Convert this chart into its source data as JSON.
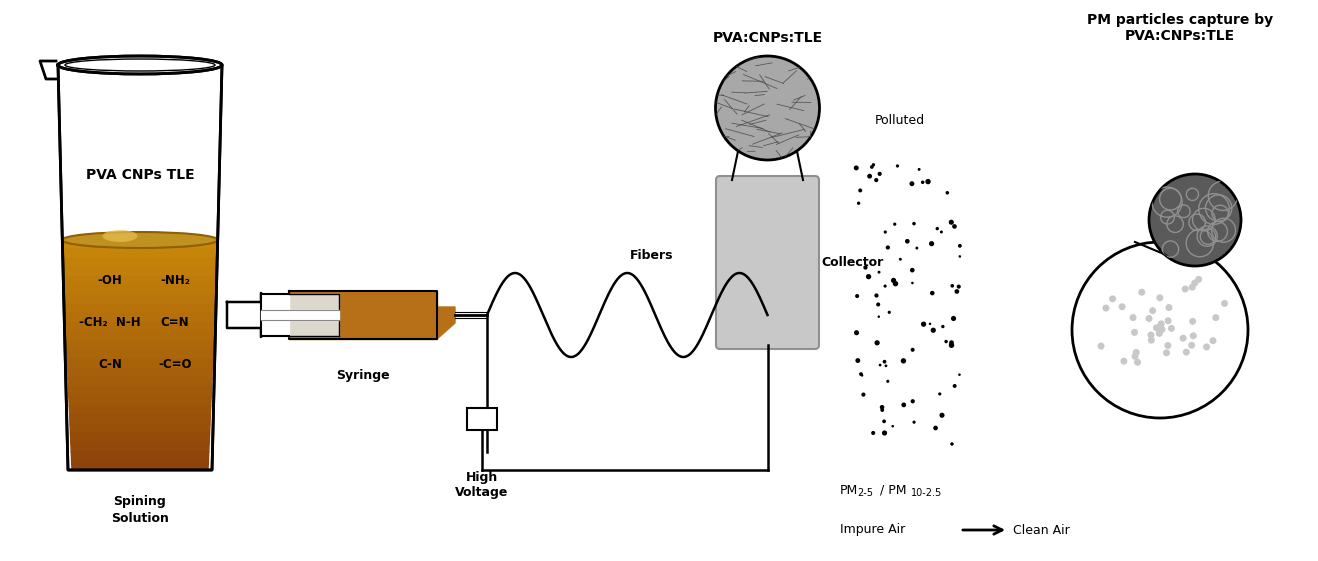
{
  "bg_color": "#ffffff",
  "beaker_label": "PVA CNPs TLE",
  "beaker_bottom_label": "Spining\nSolution",
  "syringe_label": "Syringe",
  "fibers_label": "Fibers",
  "collector_label": "Collector",
  "hv_label": "High\nVoltage",
  "pva_cnp_tle_label": "PVA:CNPs:TLE",
  "pm_title": "PM particles capture by\nPVA:CNPs:TLE",
  "polluted_label": "Polluted",
  "impure_label": "Impure Air",
  "clean_label": "Clean Air",
  "liquid_color_top": "#c89030",
  "liquid_color_bot": "#7a5010",
  "collector_color": "#c0c0c0",
  "fiber_circle_color": "#999999",
  "dark_circle_color": "#606060"
}
